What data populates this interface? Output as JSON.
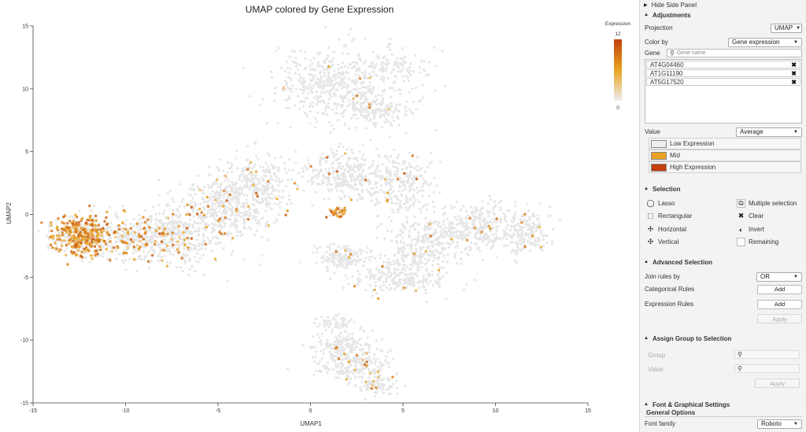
{
  "plot": {
    "title": "UMAP colored by Gene Expression",
    "xlabel": "UMAP1",
    "ylabel": "UMAP2",
    "legend_title": "Expression",
    "legend_max": "12",
    "legend_min": "0"
  },
  "chart_data": {
    "type": "scatter",
    "title": "UMAP colored by Gene Expression",
    "xlabel": "UMAP1",
    "ylabel": "UMAP2",
    "xlim": [
      -15,
      15
    ],
    "ylim": [
      -15,
      15
    ],
    "x_ticks": [
      "-15",
      "-10",
      "-5",
      "0",
      "5",
      "10",
      "15"
    ],
    "y_ticks": [
      "-15",
      "-10",
      "-5",
      "0",
      "5",
      "10",
      "15"
    ],
    "color_scale": {
      "title": "Expression",
      "min": 0,
      "max": 12,
      "colors": [
        "#eeeeee",
        "#e9a322",
        "#c2410c"
      ]
    },
    "grid": false,
    "legend_placement": "top-right",
    "clusters": [
      {
        "cx": 1.5,
        "cy": 10.4,
        "sx": 2.2,
        "sy": 2.0,
        "n": 520,
        "expr": 0.02
      },
      {
        "cx": 4.8,
        "cy": 11.8,
        "sx": 1.0,
        "sy": 1.0,
        "n": 80,
        "expr": 0.02
      },
      {
        "cx": 3.7,
        "cy": 8.2,
        "sx": 1.2,
        "sy": 0.8,
        "n": 120,
        "expr": 0.03
      },
      {
        "cx": -12.4,
        "cy": -1.7,
        "sx": 1.1,
        "sy": 1.0,
        "n": 520,
        "expr": 0.55
      },
      {
        "cx": -9.5,
        "cy": -1.9,
        "sx": 1.6,
        "sy": 1.2,
        "n": 380,
        "expr": 0.25
      },
      {
        "cx": -7.0,
        "cy": -1.6,
        "sx": 1.4,
        "sy": 1.6,
        "n": 340,
        "expr": 0.06
      },
      {
        "cx": -4.6,
        "cy": 0.6,
        "sx": 1.5,
        "sy": 1.8,
        "n": 400,
        "expr": 0.05
      },
      {
        "cx": -2.8,
        "cy": 2.3,
        "sx": 1.2,
        "sy": 1.6,
        "n": 260,
        "expr": 0.05
      },
      {
        "cx": 1.8,
        "cy": 3.2,
        "sx": 1.6,
        "sy": 1.2,
        "n": 300,
        "expr": 0.03
      },
      {
        "cx": 4.8,
        "cy": 2.5,
        "sx": 1.2,
        "sy": 1.8,
        "n": 260,
        "expr": 0.02
      },
      {
        "cx": 1.5,
        "cy": 0.2,
        "sx": 0.5,
        "sy": 0.3,
        "n": 40,
        "expr": 0.7
      },
      {
        "cx": 6.6,
        "cy": -1.7,
        "sx": 1.3,
        "sy": 1.0,
        "n": 200,
        "expr": 0.02
      },
      {
        "cx": 9.2,
        "cy": -1.0,
        "sx": 1.3,
        "sy": 1.3,
        "n": 260,
        "expr": 0.02
      },
      {
        "cx": 11.6,
        "cy": -1.5,
        "sx": 0.9,
        "sy": 1.3,
        "n": 180,
        "expr": 0.02
      },
      {
        "cx": 1.6,
        "cy": -3.4,
        "sx": 1.0,
        "sy": 0.6,
        "n": 160,
        "expr": 0.02
      },
      {
        "cx": 5.2,
        "cy": -3.8,
        "sx": 1.5,
        "sy": 1.0,
        "n": 180,
        "expr": 0.02
      },
      {
        "cx": 4.8,
        "cy": -5.4,
        "sx": 2.0,
        "sy": 0.6,
        "n": 160,
        "expr": 0.02
      },
      {
        "cx": 1.8,
        "cy": -10.4,
        "sx": 1.0,
        "sy": 0.9,
        "n": 160,
        "expr": 0.04
      },
      {
        "cx": 2.5,
        "cy": -12.0,
        "sx": 1.5,
        "sy": 0.9,
        "n": 220,
        "expr": 0.04
      },
      {
        "cx": 3.6,
        "cy": -13.6,
        "sx": 0.8,
        "sy": 0.5,
        "n": 80,
        "expr": 0.03
      },
      {
        "cx": 1.4,
        "cy": -8.6,
        "sx": 0.6,
        "sy": 0.5,
        "n": 60,
        "expr": 0.03
      }
    ]
  },
  "panel": {
    "hide_label": "Hide Side Panel",
    "adjustments": {
      "heading": "Adjustments",
      "projection_label": "Projection",
      "projection_value": "UMAP",
      "color_by_label": "Color by",
      "color_by_value": "Gene expression",
      "gene_label": "Gene",
      "gene_placeholder": "Gene name",
      "genes": [
        "AT4G04460",
        "AT1G11190",
        "AT5G17520"
      ],
      "value_label": "Value",
      "value_value": "Average",
      "legend": [
        {
          "label": "Low Expression",
          "color": "#eeeeee"
        },
        {
          "label": "Mid",
          "color": "#e9a322"
        },
        {
          "label": "High Expression",
          "color": "#c2410c"
        }
      ]
    },
    "selection": {
      "heading": "Selection",
      "lasso": "Lasso",
      "rectangular": "Rectangular",
      "horizontal": "Horizontal",
      "vertical": "Vertical",
      "multiple": "Multiple selection",
      "clear": "Clear",
      "invert": "Invert",
      "remaining": "Remaining"
    },
    "advanced": {
      "heading": "Advanced Selection",
      "join_label": "Join rules by",
      "join_value": "OR",
      "categorical_label": "Categorical Rules",
      "expression_label": "Expression Rules",
      "add": "Add",
      "apply": "Apply"
    },
    "assign": {
      "heading": "Assign Group to Selection",
      "group_label": "Group",
      "value_label": "Value",
      "apply": "Apply"
    },
    "font": {
      "heading": "Font & Graphical Settings",
      "general": "General Options",
      "family_label": "Font family",
      "family_value": "Roboto"
    }
  }
}
